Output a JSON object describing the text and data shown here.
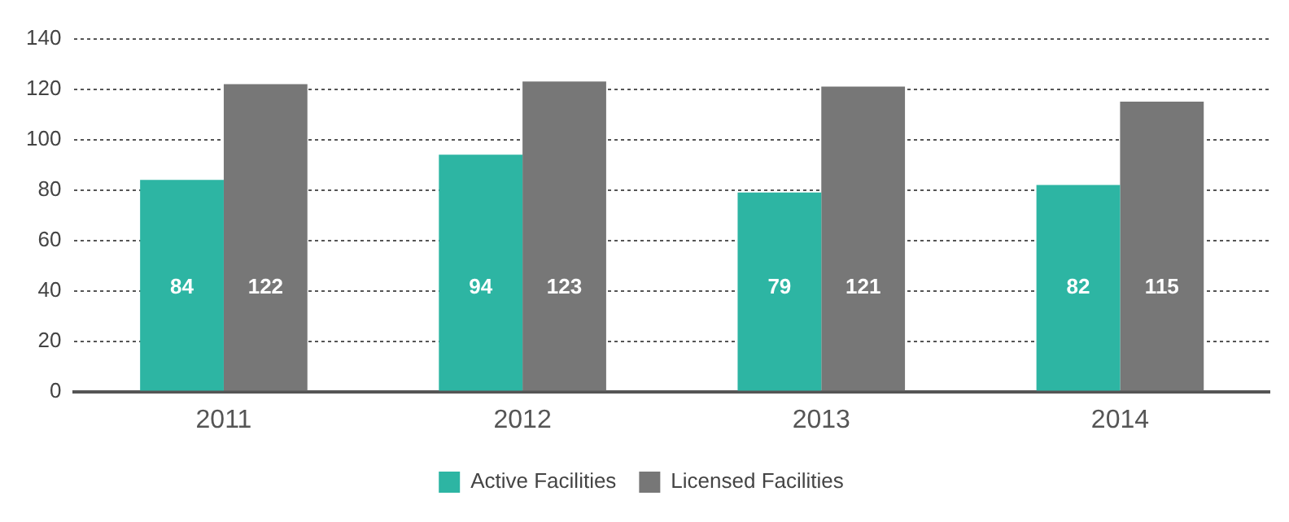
{
  "chart_data": {
    "type": "bar",
    "categories": [
      "2011",
      "2012",
      "2013",
      "2014"
    ],
    "series": [
      {
        "name": "Active Facilities",
        "color": "#2db5a3",
        "values": [
          84,
          94,
          79,
          82
        ]
      },
      {
        "name": "Licensed Facilities",
        "color": "#777777",
        "values": [
          122,
          123,
          121,
          115
        ]
      }
    ],
    "ylim": [
      0,
      140
    ],
    "yticks": [
      0,
      20,
      40,
      60,
      80,
      100,
      120,
      140
    ],
    "grid": "y",
    "legend": "bottom",
    "data_labels": true
  }
}
